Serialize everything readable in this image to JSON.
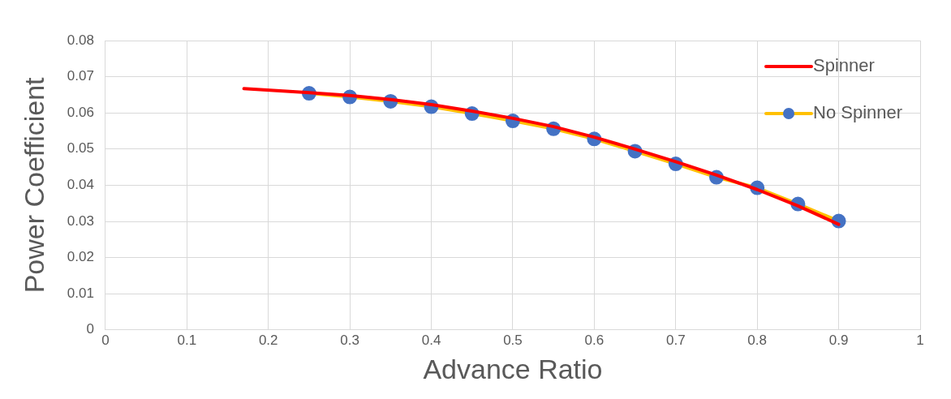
{
  "chart_data": {
    "type": "line",
    "xlabel": "Advance Ratio",
    "ylabel": "Power Coefficient",
    "xlim": [
      0,
      1
    ],
    "xticks": [
      0,
      0.1,
      0.2,
      0.3,
      0.4,
      0.5,
      0.6,
      0.7,
      0.8,
      0.9,
      1
    ],
    "ylim": [
      0,
      0.08
    ],
    "yticks": [
      0,
      0.01,
      0.02,
      0.03,
      0.04,
      0.05,
      0.06,
      0.07,
      0.08
    ],
    "grid": true,
    "legend": "top right",
    "series": [
      {
        "name": "Spinner",
        "color": "#ff0000",
        "marker": "none",
        "x": [
          0.17,
          0.25,
          0.3,
          0.35,
          0.4,
          0.45,
          0.5,
          0.55,
          0.6,
          0.65,
          0.7,
          0.75,
          0.8,
          0.85,
          0.9
        ],
        "values": [
          0.0667,
          0.0656,
          0.0648,
          0.0637,
          0.0623,
          0.0605,
          0.0585,
          0.0562,
          0.0533,
          0.05,
          0.0465,
          0.0428,
          0.0388,
          0.0343,
          0.0292
        ]
      },
      {
        "name": "No Spinner",
        "color": "#ffc000",
        "marker": "circle",
        "x": [
          0.25,
          0.3,
          0.35,
          0.4,
          0.45,
          0.5,
          0.55,
          0.6,
          0.65,
          0.7,
          0.75,
          0.8,
          0.85,
          0.9
        ],
        "values": [
          0.0654,
          0.0644,
          0.0632,
          0.0617,
          0.0598,
          0.0578,
          0.0556,
          0.0528,
          0.0494,
          0.0459,
          0.0422,
          0.0393,
          0.0348,
          0.0301
        ]
      }
    ]
  }
}
